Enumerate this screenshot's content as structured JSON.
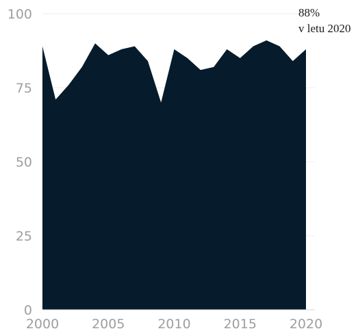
{
  "chart_data": {
    "type": "area",
    "title": "",
    "xlabel": "",
    "ylabel": "",
    "x": [
      2000,
      2001,
      2002,
      2003,
      2004,
      2005,
      2006,
      2007,
      2008,
      2009,
      2010,
      2011,
      2012,
      2013,
      2014,
      2015,
      2016,
      2017,
      2018,
      2019,
      2020
    ],
    "series": [
      {
        "color": "#061b2b",
        "values": [
          89,
          71,
          76,
          82,
          90,
          86,
          88,
          89,
          84,
          70,
          88,
          85,
          81,
          82,
          88,
          85,
          89,
          91,
          89,
          84,
          88
        ]
      }
    ],
    "xlim": [
      2000,
      2020
    ],
    "ylim": [
      0,
      100
    ],
    "x_ticks": [
      2000,
      2005,
      2010,
      2015,
      2020
    ],
    "y_ticks": [
      0,
      25,
      50,
      75,
      100
    ],
    "grid": true,
    "annotation": {
      "value_text": "88%",
      "caption_text": "v letu 2020"
    }
  }
}
